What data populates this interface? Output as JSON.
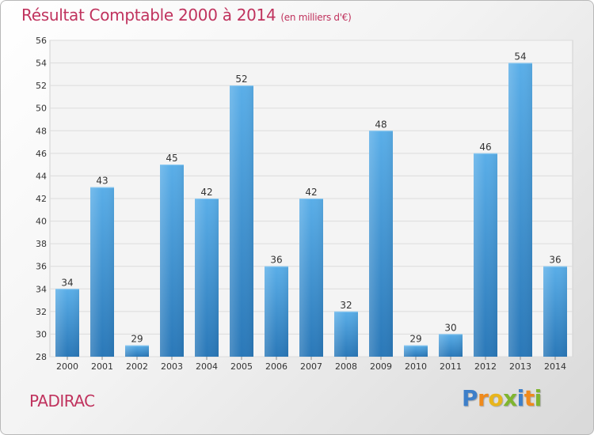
{
  "header": {
    "title": "Résultat Comptable 2000 à 2014",
    "subtitle": "(en milliers d'€)"
  },
  "footer": {
    "commune": "PADIRAC",
    "brand": "Proxiti"
  },
  "colors": {
    "title": "#c0335e",
    "bar_top": "#5aaee8",
    "bar_bottom": "#2a78b8"
  },
  "chart_data": {
    "type": "bar",
    "title": "Résultat Comptable 2000 à 2014",
    "subtitle": "(en milliers d'€)",
    "xlabel": "",
    "ylabel": "",
    "categories": [
      "2000",
      "2001",
      "2002",
      "2003",
      "2004",
      "2005",
      "2006",
      "2007",
      "2008",
      "2009",
      "2010",
      "2011",
      "2012",
      "2013",
      "2014"
    ],
    "values": [
      34,
      43,
      29,
      45,
      42,
      52,
      36,
      42,
      32,
      48,
      29,
      30,
      46,
      54,
      36
    ],
    "ylim": [
      28,
      56
    ],
    "yticks": [
      28,
      30,
      32,
      34,
      36,
      38,
      40,
      42,
      44,
      46,
      48,
      50,
      52,
      54,
      56
    ],
    "grid": true,
    "legend": "none"
  }
}
